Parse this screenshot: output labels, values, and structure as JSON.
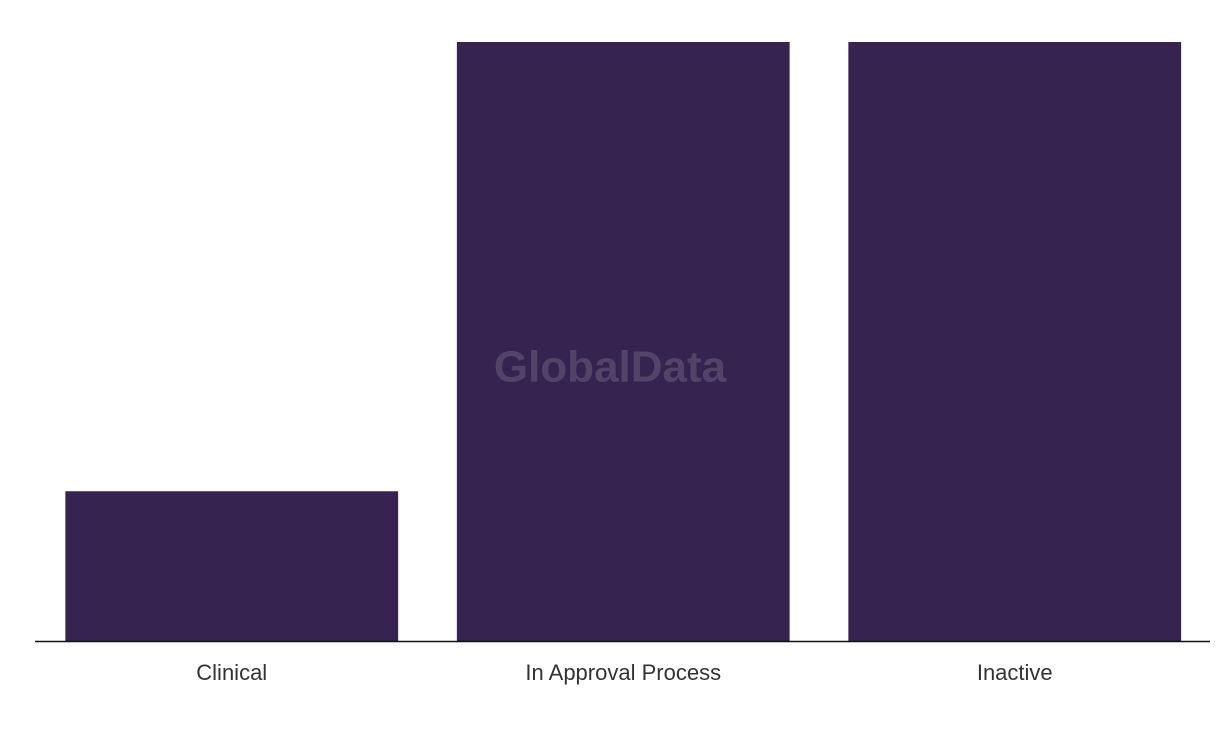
{
  "chart_data": {
    "type": "bar",
    "watermark": "GlobalData",
    "categories": [
      "Clinical",
      "In Approval Process",
      "Inactive"
    ],
    "values": [
      1,
      4,
      4
    ],
    "color": "#36234f",
    "ylim": [
      0,
      4
    ]
  }
}
